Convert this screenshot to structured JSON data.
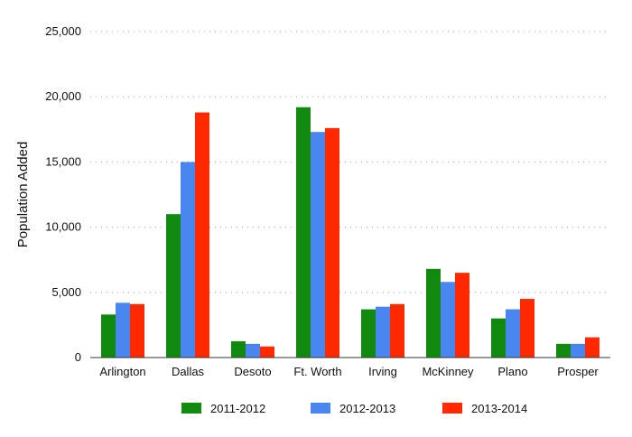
{
  "chart_data": {
    "type": "bar",
    "title": "",
    "xlabel": "",
    "ylabel": "Population Added",
    "categories": [
      "Arlington",
      "Dallas",
      "Desoto",
      "Ft. Worth",
      "Irving",
      "McKinney",
      "Plano",
      "Prosper"
    ],
    "series": [
      {
        "name": "2011-2012",
        "color": "#0f8a0f",
        "values": [
          3300,
          11000,
          1250,
          19200,
          3700,
          6800,
          3000,
          1050
        ]
      },
      {
        "name": "2012-2013",
        "color": "#4a86f0",
        "values": [
          4200,
          15000,
          1050,
          17300,
          3900,
          5800,
          3700,
          1050
        ]
      },
      {
        "name": "2013-2014",
        "color": "#ff2a00",
        "values": [
          4100,
          18800,
          850,
          17600,
          4100,
          6500,
          4500,
          1550
        ]
      }
    ],
    "ylim": [
      0,
      25000
    ],
    "yticks": [
      0,
      5000,
      10000,
      15000,
      20000,
      25000
    ],
    "ytick_labels": [
      "0",
      "5,000",
      "10,000",
      "15,000",
      "20,000",
      "25,000"
    ],
    "grid": true,
    "legend_position": "bottom"
  }
}
